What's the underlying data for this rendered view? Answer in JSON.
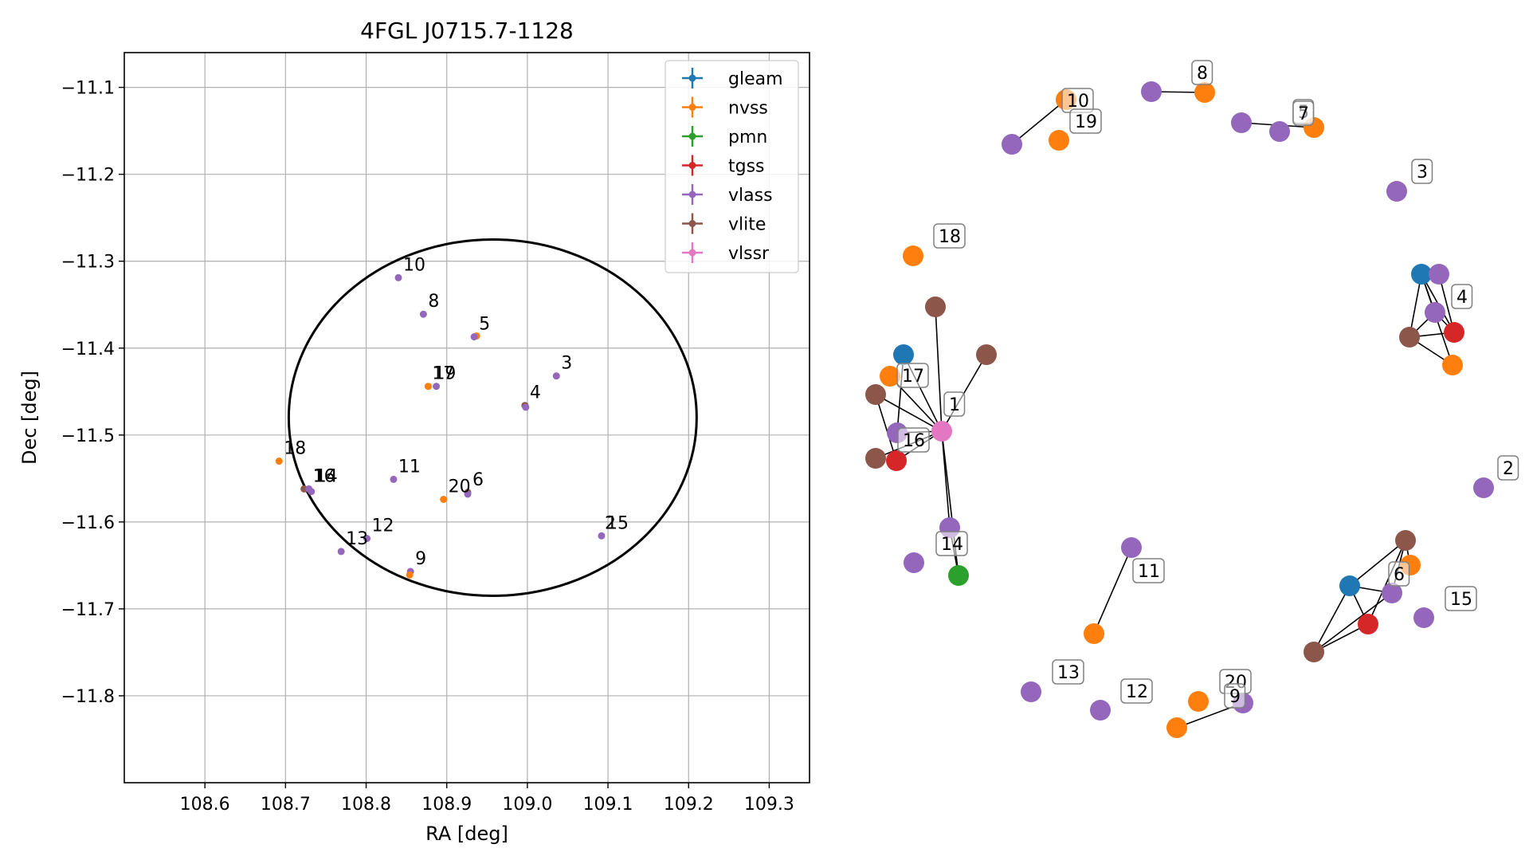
{
  "chart_data": [
    {
      "type": "scatter",
      "title": "4FGL J0715.7-1128",
      "xlabel": "RA [deg]",
      "ylabel": "Dec [deg]",
      "xlim": [
        108.5,
        109.35
      ],
      "ylim": [
        -11.9,
        -11.06
      ],
      "xticks": [
        108.6,
        108.7,
        108.8,
        108.9,
        109.0,
        109.1,
        109.2,
        109.3
      ],
      "xtick_labels": [
        "108.6",
        "108.7",
        "108.8",
        "108.9",
        "109.0",
        "109.1",
        "109.2",
        "109.3"
      ],
      "yticks": [
        -11.1,
        -11.2,
        -11.3,
        -11.4,
        -11.5,
        -11.6,
        -11.7,
        -11.8
      ],
      "ytick_labels": [
        "−11.1",
        "−11.2",
        "−11.3",
        "−11.4",
        "−11.5",
        "−11.6",
        "−11.7",
        "−11.8"
      ],
      "grid": true,
      "legend_position": "top-right",
      "legend": [
        {
          "name": "gleam",
          "color": "#1f77b4"
        },
        {
          "name": "nvss",
          "color": "#ff7f0e"
        },
        {
          "name": "pmn",
          "color": "#2ca02c"
        },
        {
          "name": "tgss",
          "color": "#d62728"
        },
        {
          "name": "vlass",
          "color": "#9467bd"
        },
        {
          "name": "vlite",
          "color": "#8c564b"
        },
        {
          "name": "vlssr",
          "color": "#e377c2"
        }
      ],
      "ellipse": {
        "center": [
          108.957,
          -11.48
        ],
        "ra_halfwidth": 0.253,
        "dec_halfwidth": 0.205
      },
      "points": [
        {
          "survey": "vlite",
          "x": 108.723,
          "y": -11.562
        },
        {
          "survey": "vlass",
          "x": 108.729,
          "y": -11.562
        },
        {
          "survey": "vlass",
          "x": 108.732,
          "y": -11.565
        },
        {
          "survey": "nvss",
          "x": 108.692,
          "y": -11.53
        },
        {
          "survey": "vlass",
          "x": 108.84,
          "y": -11.319
        },
        {
          "survey": "vlass",
          "x": 108.871,
          "y": -11.361
        },
        {
          "survey": "nvss",
          "x": 108.937,
          "y": -11.386
        },
        {
          "survey": "vlass",
          "x": 108.934,
          "y": -11.387
        },
        {
          "survey": "vlass",
          "x": 109.036,
          "y": -11.432
        },
        {
          "survey": "nvss",
          "x": 108.877,
          "y": -11.444
        },
        {
          "survey": "vlass",
          "x": 108.887,
          "y": -11.444
        },
        {
          "survey": "vlite",
          "x": 108.997,
          "y": -11.466
        },
        {
          "survey": "vlass",
          "x": 108.998,
          "y": -11.468
        },
        {
          "survey": "vlass",
          "x": 108.834,
          "y": -11.551
        },
        {
          "survey": "nvss",
          "x": 108.896,
          "y": -11.574
        },
        {
          "survey": "vlite",
          "x": 108.926,
          "y": -11.566
        },
        {
          "survey": "vlass",
          "x": 108.926,
          "y": -11.568
        },
        {
          "survey": "vlass",
          "x": 109.092,
          "y": -11.616
        },
        {
          "survey": "vlass",
          "x": 108.801,
          "y": -11.619
        },
        {
          "survey": "vlass",
          "x": 108.769,
          "y": -11.634
        },
        {
          "survey": "vlass",
          "x": 108.855,
          "y": -11.657
        },
        {
          "survey": "nvss",
          "x": 108.854,
          "y": -11.661
        }
      ],
      "labels": [
        {
          "text": "10",
          "x": 108.84,
          "y": -11.319
        },
        {
          "text": "8",
          "x": 108.871,
          "y": -11.361
        },
        {
          "text": "5",
          "x": 108.934,
          "y": -11.387
        },
        {
          "text": "3",
          "x": 109.036,
          "y": -11.432
        },
        {
          "text": "17",
          "x": 108.876,
          "y": -11.444
        },
        {
          "text": "19",
          "x": 108.878,
          "y": -11.444
        },
        {
          "text": "4",
          "x": 108.997,
          "y": -11.466
        },
        {
          "text": "18",
          "x": 108.692,
          "y": -11.53
        },
        {
          "text": "1",
          "x": 108.729,
          "y": -11.562
        },
        {
          "text": "16",
          "x": 108.728,
          "y": -11.562
        },
        {
          "text": "14",
          "x": 108.731,
          "y": -11.562
        },
        {
          "text": "11",
          "x": 108.834,
          "y": -11.551
        },
        {
          "text": "20",
          "x": 108.896,
          "y": -11.574
        },
        {
          "text": "6",
          "x": 108.926,
          "y": -11.566
        },
        {
          "text": "2",
          "x": 109.09,
          "y": -11.616
        },
        {
          "text": "15",
          "x": 109.092,
          "y": -11.616
        },
        {
          "text": "12",
          "x": 108.801,
          "y": -11.619
        },
        {
          "text": "13",
          "x": 108.769,
          "y": -11.634
        },
        {
          "text": "9",
          "x": 108.855,
          "y": -11.657
        }
      ]
    },
    {
      "type": "network",
      "nodes": [
        {
          "id": "n8v",
          "survey": "vlass"
        },
        {
          "id": "n8n",
          "survey": "nvss"
        },
        {
          "id": "n10n",
          "survey": "nvss"
        },
        {
          "id": "n10v",
          "survey": "vlass"
        },
        {
          "id": "n19n",
          "survey": "nvss"
        },
        {
          "id": "n5v",
          "survey": "vlass"
        },
        {
          "id": "n7v",
          "survey": "vlass"
        },
        {
          "id": "n57n",
          "survey": "nvss"
        },
        {
          "id": "n3v",
          "survey": "vlass"
        },
        {
          "id": "n18n",
          "survey": "nvss"
        },
        {
          "id": "n4g",
          "survey": "gleam"
        },
        {
          "id": "n4v1",
          "survey": "vlass"
        },
        {
          "id": "n4v2",
          "survey": "vlass"
        },
        {
          "id": "n4t",
          "survey": "tgss"
        },
        {
          "id": "n4l",
          "survey": "vlite"
        },
        {
          "id": "n4n",
          "survey": "nvss"
        },
        {
          "id": "n1l1",
          "survey": "vlite"
        },
        {
          "id": "n1l2",
          "survey": "vlite"
        },
        {
          "id": "n1g",
          "survey": "gleam"
        },
        {
          "id": "n17n",
          "survey": "nvss"
        },
        {
          "id": "n1l3",
          "survey": "vlite"
        },
        {
          "id": "n1s",
          "survey": "vlssr"
        },
        {
          "id": "n16v",
          "survey": "vlass"
        },
        {
          "id": "n1l4",
          "survey": "vlite"
        },
        {
          "id": "n1t",
          "survey": "tgss"
        },
        {
          "id": "n1v",
          "survey": "vlass"
        },
        {
          "id": "n1p",
          "survey": "pmn"
        },
        {
          "id": "n14v",
          "survey": "vlass"
        },
        {
          "id": "n2v",
          "survey": "vlass"
        },
        {
          "id": "n11v",
          "survey": "vlass"
        },
        {
          "id": "n11n",
          "survey": "nvss"
        },
        {
          "id": "n6l1",
          "survey": "vlite"
        },
        {
          "id": "n6n",
          "survey": "nvss"
        },
        {
          "id": "n6g",
          "survey": "gleam"
        },
        {
          "id": "n6v",
          "survey": "vlass"
        },
        {
          "id": "n6t",
          "survey": "tgss"
        },
        {
          "id": "n6l2",
          "survey": "vlite"
        },
        {
          "id": "n15v",
          "survey": "vlass"
        },
        {
          "id": "n13v",
          "survey": "vlass"
        },
        {
          "id": "n12v",
          "survey": "vlass"
        },
        {
          "id": "n20n",
          "survey": "nvss"
        },
        {
          "id": "n9v",
          "survey": "vlass"
        },
        {
          "id": "n9n",
          "survey": "nvss"
        }
      ],
      "edges": [
        [
          "n8v",
          "n8n"
        ],
        [
          "n10n",
          "n10v"
        ],
        [
          "n5v",
          "n57n"
        ],
        [
          "n4g",
          "n4v1"
        ],
        [
          "n4g",
          "n4v2"
        ],
        [
          "n4g",
          "n4t"
        ],
        [
          "n4g",
          "n4l"
        ],
        [
          "n4g",
          "n4n"
        ],
        [
          "n4v1",
          "n4t"
        ],
        [
          "n4v2",
          "n4t"
        ],
        [
          "n4l",
          "n4t"
        ],
        [
          "n4l",
          "n4n"
        ],
        [
          "n4v2",
          "n4l"
        ],
        [
          "n1s",
          "n1l1"
        ],
        [
          "n1s",
          "n1l2"
        ],
        [
          "n1s",
          "n1g"
        ],
        [
          "n1s",
          "n17n"
        ],
        [
          "n1s",
          "n1l3"
        ],
        [
          "n1s",
          "n16v"
        ],
        [
          "n1s",
          "n1l4"
        ],
        [
          "n1s",
          "n1t"
        ],
        [
          "n1s",
          "n1v"
        ],
        [
          "n1s",
          "n1p"
        ],
        [
          "n1g",
          "n16v"
        ],
        [
          "n1l3",
          "n1t"
        ],
        [
          "n1v",
          "n1p"
        ],
        [
          "n11v",
          "n11n"
        ],
        [
          "n6l1",
          "n6g"
        ],
        [
          "n6l1",
          "n6t"
        ],
        [
          "n6l1",
          "n6v"
        ],
        [
          "n6l1",
          "n6n"
        ],
        [
          "n6g",
          "n6l2"
        ],
        [
          "n6g",
          "n6t"
        ],
        [
          "n6g",
          "n6v"
        ],
        [
          "n6l2",
          "n6t"
        ],
        [
          "n6l2",
          "n6v"
        ],
        [
          "n9n",
          "n9v"
        ]
      ],
      "labels": [
        {
          "text": "8",
          "node": "n8n"
        },
        {
          "text": "10",
          "node": "n10n"
        },
        {
          "text": "19",
          "node": "n19n"
        },
        {
          "text": "5",
          "node": "n57n"
        },
        {
          "text": "7",
          "node": "n7v"
        },
        {
          "text": "3",
          "node": "n3v"
        },
        {
          "text": "18",
          "node": "n18n"
        },
        {
          "text": "4",
          "node": "n4v2"
        },
        {
          "text": "17",
          "node": "n17n"
        },
        {
          "text": "1",
          "node": "n1s"
        },
        {
          "text": "16",
          "node": "n16v"
        },
        {
          "text": "2",
          "node": "n2v"
        },
        {
          "text": "14",
          "node": "n14v"
        },
        {
          "text": "11",
          "node": "n11v"
        },
        {
          "text": "6",
          "node": "n6v"
        },
        {
          "text": "15",
          "node": "n15v"
        },
        {
          "text": "13",
          "node": "n13v"
        },
        {
          "text": "12",
          "node": "n12v"
        },
        {
          "text": "20",
          "node": "n20n"
        },
        {
          "text": "9",
          "node": "n9v"
        }
      ]
    }
  ]
}
